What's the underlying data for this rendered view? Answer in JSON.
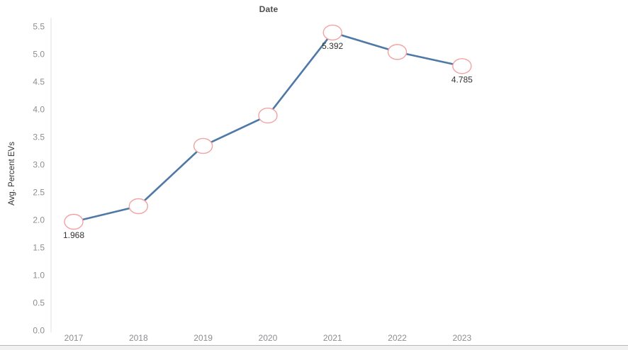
{
  "chart_data": {
    "type": "line",
    "title": "Date",
    "ylabel": "Avg. Percent EVs",
    "x": [
      2017,
      2018,
      2019,
      2020,
      2021,
      2022,
      2023
    ],
    "series": [
      {
        "name": "Avg. Percent EVs",
        "values": [
          1.968,
          2.25,
          3.34,
          3.89,
          5.392,
          5.04,
          4.785
        ]
      }
    ],
    "point_labels": [
      "1.968",
      null,
      null,
      null,
      "5.392",
      null,
      "4.785"
    ],
    "y_ticks": [
      0.0,
      0.5,
      1.0,
      1.5,
      2.0,
      2.5,
      3.0,
      3.5,
      4.0,
      4.5,
      5.0,
      5.5
    ],
    "ylim": [
      0.0,
      5.5
    ],
    "grid": false,
    "legend": "none",
    "marker": "open-circle",
    "colors": {
      "line": "#4e79a7",
      "marker_stroke": "#f2a2a2",
      "marker_fill": "#ffffff",
      "tick_label": "#8d8d92",
      "data_label": "#333333",
      "title": "#4d4d4d",
      "axis_line": "#e0e0e0"
    }
  }
}
